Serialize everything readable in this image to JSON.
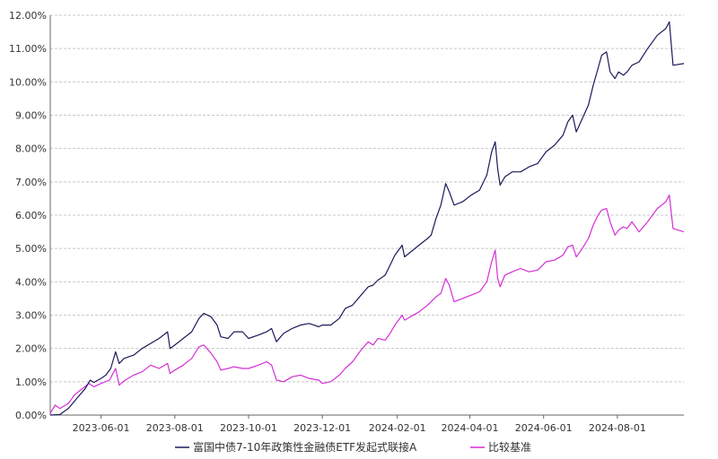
{
  "chart_data": {
    "type": "line",
    "y_ticks": [
      "0.00%",
      "1.00%",
      "2.00%",
      "3.00%",
      "4.00%",
      "5.00%",
      "6.00%",
      "7.00%",
      "8.00%",
      "9.00%",
      "10.00%",
      "11.00%",
      "12.00%"
    ],
    "ylim": [
      0,
      12
    ],
    "x_ticks": [
      "2023-06-01",
      "2023-08-01",
      "2023-10-01",
      "2023-12-01",
      "2024-02-01",
      "2024-04-01",
      "2024-06-01",
      "2024-08-01"
    ],
    "xlim": [
      "2023-04-20",
      "2024-09-25"
    ],
    "grid": "horizontal dashed",
    "legend_position": "bottom-center",
    "series": [
      {
        "name": "富国中债7-10年政策性金融债ETF发起式联接A",
        "color": "#1a1a5a",
        "points": [
          [
            "2023-04-20",
            0.0
          ],
          [
            "2023-04-28",
            0.02
          ],
          [
            "2023-05-05",
            0.2
          ],
          [
            "2023-05-12",
            0.5
          ],
          [
            "2023-05-19",
            0.8
          ],
          [
            "2023-05-23",
            1.05
          ],
          [
            "2023-05-26",
            0.98
          ],
          [
            "2023-06-01",
            1.1
          ],
          [
            "2023-06-05",
            1.2
          ],
          [
            "2023-06-09",
            1.4
          ],
          [
            "2023-06-13",
            1.9
          ],
          [
            "2023-06-16",
            1.55
          ],
          [
            "2023-06-20",
            1.7
          ],
          [
            "2023-06-28",
            1.8
          ],
          [
            "2023-07-05",
            2.0
          ],
          [
            "2023-07-12",
            2.15
          ],
          [
            "2023-07-19",
            2.3
          ],
          [
            "2023-07-26",
            2.5
          ],
          [
            "2023-07-28",
            2.0
          ],
          [
            "2023-08-01",
            2.1
          ],
          [
            "2023-08-08",
            2.3
          ],
          [
            "2023-08-15",
            2.5
          ],
          [
            "2023-08-21",
            2.9
          ],
          [
            "2023-08-25",
            3.05
          ],
          [
            "2023-08-31",
            2.95
          ],
          [
            "2023-09-05",
            2.7
          ],
          [
            "2023-09-08",
            2.35
          ],
          [
            "2023-09-14",
            2.3
          ],
          [
            "2023-09-19",
            2.5
          ],
          [
            "2023-09-26",
            2.5
          ],
          [
            "2023-10-01",
            2.3
          ],
          [
            "2023-10-09",
            2.4
          ],
          [
            "2023-10-16",
            2.5
          ],
          [
            "2023-10-20",
            2.6
          ],
          [
            "2023-10-24",
            2.2
          ],
          [
            "2023-10-30",
            2.45
          ],
          [
            "2023-11-06",
            2.6
          ],
          [
            "2023-11-13",
            2.7
          ],
          [
            "2023-11-20",
            2.75
          ],
          [
            "2023-11-24",
            2.7
          ],
          [
            "2023-11-28",
            2.65
          ],
          [
            "2023-12-01",
            2.7
          ],
          [
            "2023-12-08",
            2.7
          ],
          [
            "2023-12-15",
            2.9
          ],
          [
            "2023-12-20",
            3.2
          ],
          [
            "2023-12-26",
            3.3
          ],
          [
            "2024-01-02",
            3.6
          ],
          [
            "2024-01-08",
            3.85
          ],
          [
            "2024-01-12",
            3.9
          ],
          [
            "2024-01-16",
            4.05
          ],
          [
            "2024-01-22",
            4.2
          ],
          [
            "2024-01-26",
            4.5
          ],
          [
            "2024-01-30",
            4.8
          ],
          [
            "2024-02-01",
            4.9
          ],
          [
            "2024-02-05",
            5.1
          ],
          [
            "2024-02-07",
            4.75
          ],
          [
            "2024-02-19",
            5.1
          ],
          [
            "2024-02-26",
            5.3
          ],
          [
            "2024-02-29",
            5.4
          ],
          [
            "2024-03-04",
            5.9
          ],
          [
            "2024-03-08",
            6.3
          ],
          [
            "2024-03-12",
            6.95
          ],
          [
            "2024-03-15",
            6.7
          ],
          [
            "2024-03-19",
            6.3
          ],
          [
            "2024-03-26",
            6.4
          ],
          [
            "2024-04-02",
            6.6
          ],
          [
            "2024-04-09",
            6.75
          ],
          [
            "2024-04-15",
            7.2
          ],
          [
            "2024-04-19",
            7.9
          ],
          [
            "2024-04-22",
            8.2
          ],
          [
            "2024-04-24",
            7.4
          ],
          [
            "2024-04-26",
            6.9
          ],
          [
            "2024-04-30",
            7.15
          ],
          [
            "2024-05-06",
            7.3
          ],
          [
            "2024-05-13",
            7.3
          ],
          [
            "2024-05-20",
            7.45
          ],
          [
            "2024-05-27",
            7.55
          ],
          [
            "2024-06-03",
            7.9
          ],
          [
            "2024-06-10",
            8.1
          ],
          [
            "2024-06-17",
            8.4
          ],
          [
            "2024-06-21",
            8.8
          ],
          [
            "2024-06-25",
            9.0
          ],
          [
            "2024-06-28",
            8.5
          ],
          [
            "2024-07-03",
            8.9
          ],
          [
            "2024-07-08",
            9.3
          ],
          [
            "2024-07-12",
            9.9
          ],
          [
            "2024-07-16",
            10.4
          ],
          [
            "2024-07-19",
            10.8
          ],
          [
            "2024-07-23",
            10.9
          ],
          [
            "2024-07-26",
            10.3
          ],
          [
            "2024-07-30",
            10.1
          ],
          [
            "2024-08-02",
            10.3
          ],
          [
            "2024-08-06",
            10.2
          ],
          [
            "2024-08-09",
            10.3
          ],
          [
            "2024-08-13",
            10.5
          ],
          [
            "2024-08-19",
            10.6
          ],
          [
            "2024-08-26",
            11.0
          ],
          [
            "2024-09-03",
            11.4
          ],
          [
            "2024-09-10",
            11.6
          ],
          [
            "2024-09-13",
            11.8
          ],
          [
            "2024-09-16",
            10.5
          ],
          [
            "2024-09-25",
            10.55
          ]
        ]
      },
      {
        "name": "比较基准",
        "color": "#d42fd4",
        "points": [
          [
            "2023-04-20",
            0.05
          ],
          [
            "2023-04-24",
            0.3
          ],
          [
            "2023-04-28",
            0.2
          ],
          [
            "2023-05-05",
            0.35
          ],
          [
            "2023-05-10",
            0.6
          ],
          [
            "2023-05-15",
            0.75
          ],
          [
            "2023-05-22",
            0.95
          ],
          [
            "2023-05-26",
            0.85
          ],
          [
            "2023-06-01",
            0.95
          ],
          [
            "2023-06-08",
            1.05
          ],
          [
            "2023-06-13",
            1.4
          ],
          [
            "2023-06-16",
            0.9
          ],
          [
            "2023-06-21",
            1.05
          ],
          [
            "2023-06-28",
            1.2
          ],
          [
            "2023-07-05",
            1.3
          ],
          [
            "2023-07-12",
            1.5
          ],
          [
            "2023-07-19",
            1.4
          ],
          [
            "2023-07-26",
            1.55
          ],
          [
            "2023-07-28",
            1.25
          ],
          [
            "2023-08-01",
            1.35
          ],
          [
            "2023-08-08",
            1.5
          ],
          [
            "2023-08-15",
            1.7
          ],
          [
            "2023-08-21",
            2.05
          ],
          [
            "2023-08-25",
            2.1
          ],
          [
            "2023-08-31",
            1.85
          ],
          [
            "2023-09-05",
            1.6
          ],
          [
            "2023-09-08",
            1.35
          ],
          [
            "2023-09-14",
            1.4
          ],
          [
            "2023-09-19",
            1.45
          ],
          [
            "2023-09-26",
            1.4
          ],
          [
            "2023-10-01",
            1.4
          ],
          [
            "2023-10-09",
            1.5
          ],
          [
            "2023-10-16",
            1.6
          ],
          [
            "2023-10-20",
            1.5
          ],
          [
            "2023-10-24",
            1.05
          ],
          [
            "2023-10-30",
            1.0
          ],
          [
            "2023-11-06",
            1.15
          ],
          [
            "2023-11-13",
            1.2
          ],
          [
            "2023-11-20",
            1.1
          ],
          [
            "2023-11-28",
            1.05
          ],
          [
            "2023-12-01",
            0.95
          ],
          [
            "2023-12-08",
            1.0
          ],
          [
            "2023-12-15",
            1.2
          ],
          [
            "2023-12-20",
            1.4
          ],
          [
            "2023-12-26",
            1.6
          ],
          [
            "2024-01-02",
            1.95
          ],
          [
            "2024-01-08",
            2.2
          ],
          [
            "2024-01-12",
            2.1
          ],
          [
            "2024-01-16",
            2.3
          ],
          [
            "2024-01-22",
            2.25
          ],
          [
            "2024-01-26",
            2.45
          ],
          [
            "2024-01-30",
            2.7
          ],
          [
            "2024-02-01",
            2.8
          ],
          [
            "2024-02-05",
            3.0
          ],
          [
            "2024-02-07",
            2.85
          ],
          [
            "2024-02-19",
            3.1
          ],
          [
            "2024-02-26",
            3.3
          ],
          [
            "2024-03-04",
            3.55
          ],
          [
            "2024-03-08",
            3.65
          ],
          [
            "2024-03-12",
            4.1
          ],
          [
            "2024-03-15",
            3.9
          ],
          [
            "2024-03-19",
            3.4
          ],
          [
            "2024-03-26",
            3.5
          ],
          [
            "2024-04-02",
            3.6
          ],
          [
            "2024-04-09",
            3.7
          ],
          [
            "2024-04-15",
            4.0
          ],
          [
            "2024-04-19",
            4.6
          ],
          [
            "2024-04-22",
            4.95
          ],
          [
            "2024-04-24",
            4.1
          ],
          [
            "2024-04-26",
            3.85
          ],
          [
            "2024-04-30",
            4.2
          ],
          [
            "2024-05-06",
            4.3
          ],
          [
            "2024-05-13",
            4.4
          ],
          [
            "2024-05-20",
            4.3
          ],
          [
            "2024-05-27",
            4.35
          ],
          [
            "2024-06-03",
            4.6
          ],
          [
            "2024-06-10",
            4.65
          ],
          [
            "2024-06-17",
            4.8
          ],
          [
            "2024-06-21",
            5.05
          ],
          [
            "2024-06-25",
            5.1
          ],
          [
            "2024-06-28",
            4.75
          ],
          [
            "2024-07-03",
            5.0
          ],
          [
            "2024-07-08",
            5.3
          ],
          [
            "2024-07-12",
            5.7
          ],
          [
            "2024-07-16",
            6.0
          ],
          [
            "2024-07-19",
            6.15
          ],
          [
            "2024-07-23",
            6.2
          ],
          [
            "2024-07-26",
            5.8
          ],
          [
            "2024-07-30",
            5.4
          ],
          [
            "2024-08-02",
            5.55
          ],
          [
            "2024-08-06",
            5.65
          ],
          [
            "2024-08-09",
            5.6
          ],
          [
            "2024-08-13",
            5.8
          ],
          [
            "2024-08-19",
            5.5
          ],
          [
            "2024-08-26",
            5.8
          ],
          [
            "2024-09-03",
            6.2
          ],
          [
            "2024-09-10",
            6.4
          ],
          [
            "2024-09-13",
            6.6
          ],
          [
            "2024-09-16",
            5.6
          ],
          [
            "2024-09-25",
            5.5
          ]
        ]
      }
    ]
  }
}
